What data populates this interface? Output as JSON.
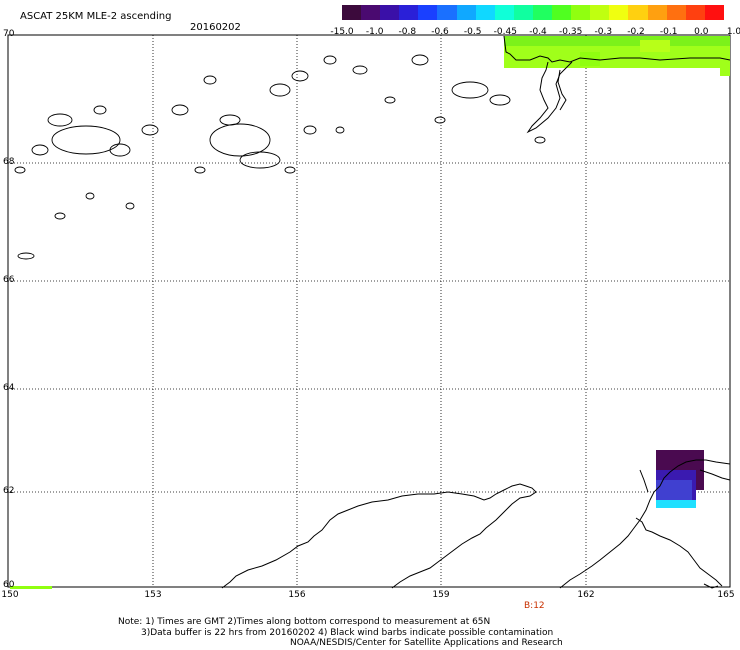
{
  "header": {
    "title": "ASCAT 25KM MLE-2 ascending",
    "date": "20160202"
  },
  "colorbar": {
    "colors": [
      "#3c0a3c",
      "#4a0a70",
      "#3a10a8",
      "#2a20d8",
      "#1a40ff",
      "#1a70ff",
      "#10a8ff",
      "#10d8ff",
      "#10ffd8",
      "#10ffa0",
      "#20ff60",
      "#50ff20",
      "#90ff10",
      "#c0ff10",
      "#f0ff10",
      "#ffd010",
      "#ffa010",
      "#ff7010",
      "#ff4010",
      "#ff1010"
    ],
    "labels": [
      "-15.0",
      "-1.0",
      "-0.8",
      "-0.6",
      "-0.5",
      "-0.45",
      "-0.4",
      "-0.35",
      "-0.3",
      "-0.2",
      "-0.1",
      "0.0",
      "1.0"
    ]
  },
  "axes": {
    "lat_labels": [
      "70",
      "68",
      "66",
      "64",
      "62",
      "60"
    ],
    "lon_labels": [
      "150",
      "153",
      "156",
      "159",
      "162",
      "165"
    ]
  },
  "pass_time": "B:12",
  "notes": {
    "line1": "Note: 1) Times are GMT 2)Times along bottom correspond to measurement at 65N",
    "line2": "3)Data buffer is 22 hrs from 20160202 4) Black wind barbs indicate possible contamination",
    "line3": "NOAA/NESDIS/Center for Satellite Applications and Research"
  }
}
